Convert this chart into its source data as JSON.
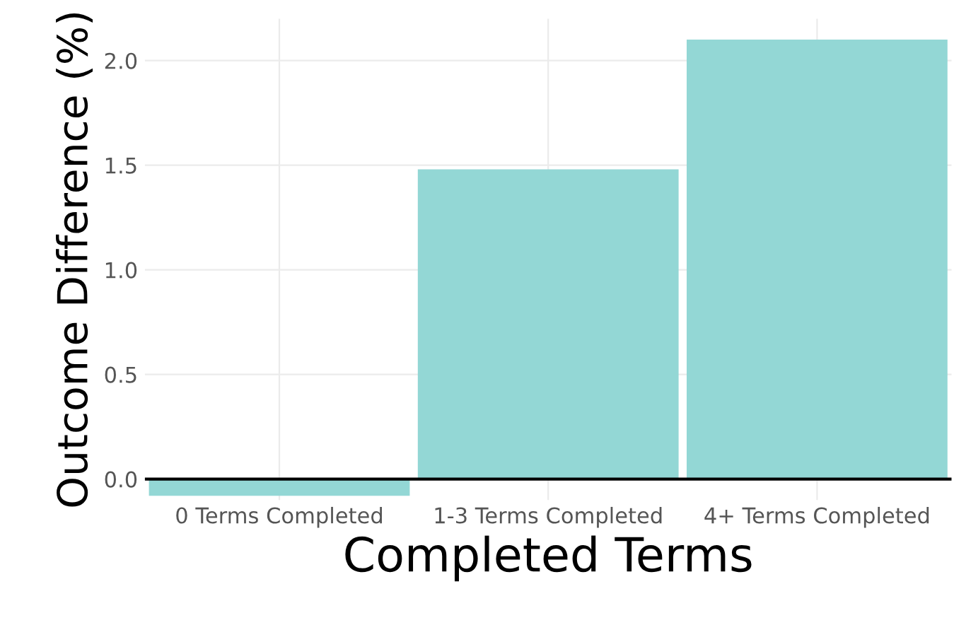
{
  "chart_data": {
    "type": "bar",
    "xlabel": "Completed Terms",
    "ylabel": "Outcome Difference (%)",
    "categories": [
      "0 Terms Completed",
      "1-3 Terms Completed",
      "4+ Terms Completed"
    ],
    "values": [
      -0.08,
      1.48,
      2.1
    ],
    "color": "#93d7d5",
    "ylim": [
      -0.1,
      2.2
    ],
    "yticks": [
      {
        "value": 0,
        "label": "0.0"
      },
      {
        "value": 0.5,
        "label": "0.5"
      },
      {
        "value": 1,
        "label": "1.0"
      },
      {
        "value": 1.5,
        "label": "1.5"
      },
      {
        "value": 2,
        "label": "2.0"
      }
    ],
    "grid": true,
    "legend": false
  }
}
